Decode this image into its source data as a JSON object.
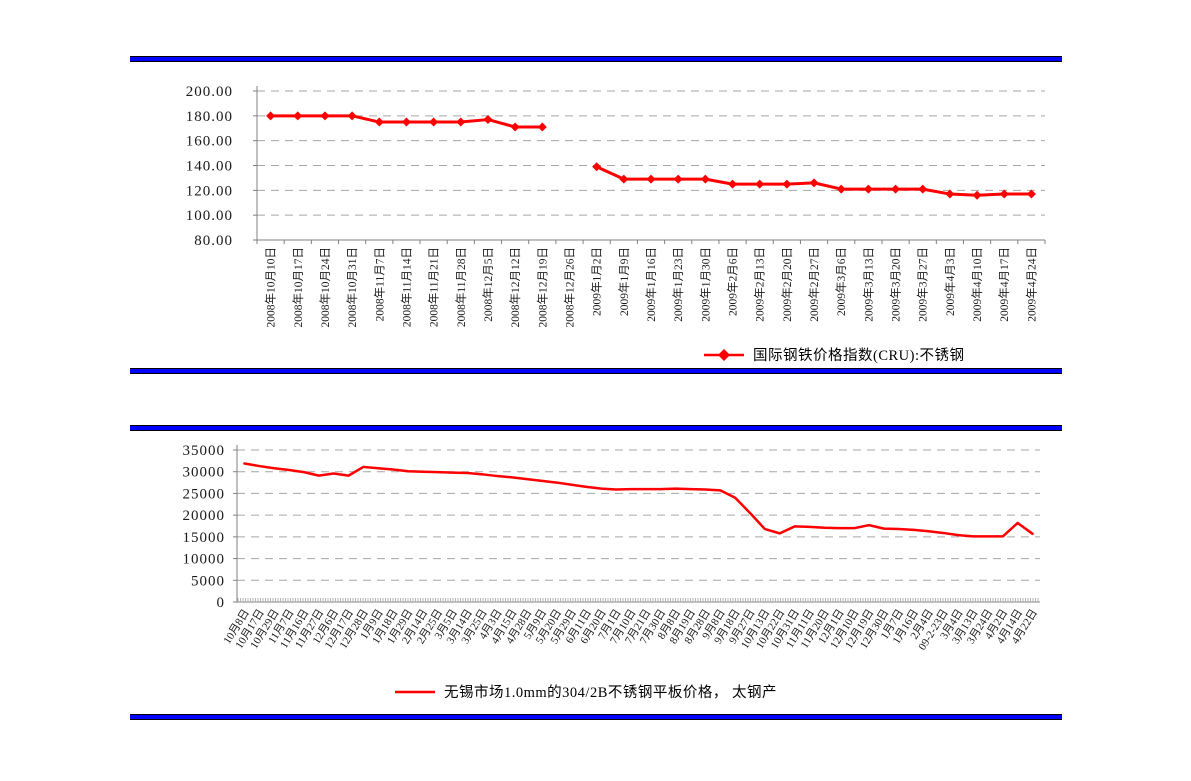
{
  "page": {
    "background_color": "#ffffff",
    "rule_color": "#0000ff",
    "rule_edge_color": "#000000"
  },
  "chart_data": [
    {
      "type": "line",
      "title": "",
      "legend_label": "国际钢铁价格指数(CRU):不锈钢",
      "legend_position": "bottom-right",
      "color": "#ff0000",
      "marker": "diamond",
      "grid": "horizontal-dashed",
      "ylim": [
        80,
        200
      ],
      "yticks": [
        200,
        180,
        160,
        140,
        120,
        100,
        80
      ],
      "ytick_labels": [
        "200.00",
        "180.00",
        "160.00",
        "140.00",
        "120.00",
        "100.00",
        "80.00"
      ],
      "categories": [
        "2008年10月10日",
        "2008年10月17日",
        "2008年10月24日",
        "2008年10月31日",
        "2008年11月7日",
        "2008年11月14日",
        "2008年11月21日",
        "2008年11月28日",
        "2008年12月5日",
        "2008年12月12日",
        "2008年12月19日",
        "2008年12月26日",
        "2009年1月2日",
        "2009年1月9日",
        "2009年1月16日",
        "2009年1月23日",
        "2009年1月30日",
        "2009年2月6日",
        "2009年2月13日",
        "2009年2月20日",
        "2009年2月27日",
        "2009年3月6日",
        "2009年3月13日",
        "2009年3月20日",
        "2009年3月27日",
        "2009年4月3日",
        "2009年4月10日",
        "2009年4月17日",
        "2009年4月24日"
      ],
      "series": [
        {
          "name": "国际钢铁价格指数(CRU):不锈钢",
          "values": [
            180,
            180,
            180,
            180,
            175,
            175,
            175,
            175,
            177,
            171,
            171,
            null,
            139,
            129,
            129,
            129,
            129,
            125,
            125,
            125,
            126,
            121,
            121,
            121,
            121,
            117,
            116,
            117,
            117
          ]
        }
      ]
    },
    {
      "type": "line",
      "title": "",
      "legend_label": "无锡市场1.0mm的304/2B不锈钢平板价格， 太钢产",
      "legend_position": "bottom-center",
      "color": "#ff0000",
      "marker": "none",
      "grid": "horizontal-dashed",
      "ylim": [
        0,
        35000
      ],
      "yticks": [
        35000,
        30000,
        25000,
        20000,
        15000,
        10000,
        5000,
        0
      ],
      "ytick_labels": [
        "35000",
        "30000",
        "25000",
        "20000",
        "15000",
        "10000",
        "5000",
        "0"
      ],
      "categories": [
        "10月8日",
        "10月17日",
        "10月29日",
        "11月7日",
        "11月16日",
        "11月27日",
        "12月6日",
        "12月17日",
        "12月28日",
        "1月9日",
        "1月18日",
        "1月29日",
        "2月14日",
        "2月25日",
        "3月5日",
        "3月14日",
        "3月25日",
        "4月3日",
        "4月15日",
        "4月28日",
        "5月9日",
        "5月20日",
        "5月29日",
        "6月11日",
        "6月20日",
        "7月1日",
        "7月10日",
        "7月21日",
        "7月30日",
        "8月8日",
        "8月19日",
        "8月28日",
        "9月8日",
        "9月18日",
        "9月27日",
        "10月13日",
        "10月22日",
        "10月31日",
        "11月11日",
        "11月20日",
        "12月1日",
        "12月10日",
        "12月19日",
        "12月30日",
        "1月7日",
        "1月16日",
        "2月4日",
        "09-2-23日",
        "3月4日",
        "3月13日",
        "3月24日",
        "4月2日",
        "4月14日",
        "4月22日"
      ],
      "series": [
        {
          "name": "无锡市场1.0mm的304/2B不锈钢平板价格， 太钢产",
          "values": [
            31900,
            31300,
            30800,
            30400,
            29900,
            29100,
            29600,
            29100,
            31100,
            30800,
            30500,
            30100,
            30000,
            29900,
            29800,
            29700,
            29400,
            29000,
            28700,
            28300,
            27900,
            27500,
            27000,
            26500,
            26100,
            25900,
            26000,
            26000,
            26000,
            26100,
            26000,
            25900,
            25700,
            24000,
            20500,
            16800,
            15800,
            17400,
            17300,
            17100,
            17000,
            17000,
            17700,
            16900,
            16800,
            16600,
            16300,
            15900,
            15400,
            15100,
            15100,
            15100,
            18200,
            15700
          ]
        }
      ]
    }
  ]
}
